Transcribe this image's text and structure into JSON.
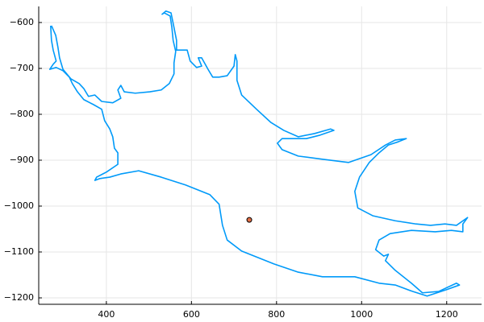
{
  "chart_data": {
    "type": "line",
    "xlim": [
      241,
      1282
    ],
    "ylim": [
      -1214,
      -565
    ],
    "xticks": [
      400,
      600,
      800,
      1000,
      1200
    ],
    "yticks": [
      {
        "value": -600,
        "label": "−600"
      },
      {
        "value": -700,
        "label": "−700"
      },
      {
        "value": -800,
        "label": "−800"
      },
      {
        "value": -900,
        "label": "−900"
      },
      {
        "value": -1000,
        "label": "−1000"
      },
      {
        "value": -1100,
        "label": "−1100"
      },
      {
        "value": -1200,
        "label": "−1200"
      }
    ],
    "grid": true,
    "series": [
      {
        "type": "line",
        "color": "#009af9",
        "x": [
          271,
          281,
          286,
          290,
          298,
          317,
          336,
          347,
          358,
          373,
          389,
          415,
          434,
          427,
          434,
          442,
          468,
          502,
          529,
          548,
          559,
          559,
          563,
          557,
          554,
          550,
          536,
          531,
          540,
          552,
          559,
          565,
          565,
          590,
          597,
          612,
          624,
          616,
          624,
          639,
          650,
          665,
          684,
          700,
          703,
          707,
          707,
          718,
          753,
          787,
          817,
          851,
          889,
          927,
          935,
          900,
          870,
          813,
          802,
          813,
          851,
          908,
          969,
          1022,
          1056,
          1079,
          1105,
          1086,
          1063,
          1041,
          1018,
          995,
          984,
          991,
          1026,
          1079,
          1128,
          1162,
          1196,
          1223,
          1249,
          1238,
          1238,
          1211,
          1173,
          1117,
          1067,
          1041,
          1033,
          1052,
          1063,
          1056,
          1079,
          1117,
          1143,
          1181,
          1223,
          1230,
          1200,
          1154,
          1120,
          1079,
          1041,
          984,
          908,
          851,
          794,
          718,
          684,
          673,
          665,
          643,
          586,
          529,
          476,
          434,
          408,
          385,
          373,
          377,
          400,
          427,
          427,
          419,
          415,
          408,
          396,
          389,
          370,
          347,
          332,
          320,
          313,
          298,
          282,
          267,
          275,
          282,
          275,
          271,
          269
        ],
        "y": [
          -607,
          -628,
          -653,
          -677,
          -702,
          -723,
          -733,
          -744,
          -761,
          -758,
          -772,
          -775,
          -765,
          -747,
          -737,
          -751,
          -754,
          -751,
          -747,
          -733,
          -712,
          -688,
          -663,
          -639,
          -611,
          -586,
          -579,
          -582,
          -575,
          -579,
          -611,
          -639,
          -660,
          -660,
          -684,
          -698,
          -695,
          -677,
          -677,
          -702,
          -719,
          -719,
          -716,
          -695,
          -670,
          -684,
          -726,
          -758,
          -789,
          -818,
          -835,
          -849,
          -842,
          -832,
          -835,
          -846,
          -853,
          -853,
          -863,
          -877,
          -891,
          -898,
          -905,
          -888,
          -867,
          -856,
          -853,
          -860,
          -867,
          -884,
          -905,
          -937,
          -968,
          -1004,
          -1021,
          -1032,
          -1039,
          -1042,
          -1039,
          -1042,
          -1025,
          -1039,
          -1056,
          -1053,
          -1056,
          -1053,
          -1060,
          -1074,
          -1095,
          -1109,
          -1105,
          -1119,
          -1140,
          -1168,
          -1189,
          -1186,
          -1168,
          -1172,
          -1182,
          -1196,
          -1186,
          -1172,
          -1168,
          -1154,
          -1154,
          -1144,
          -1126,
          -1098,
          -1074,
          -1042,
          -996,
          -975,
          -954,
          -937,
          -923,
          -930,
          -937,
          -940,
          -944,
          -937,
          -926,
          -909,
          -884,
          -874,
          -849,
          -832,
          -814,
          -789,
          -779,
          -768,
          -751,
          -733,
          -719,
          -705,
          -698,
          -702,
          -691,
          -684,
          -660,
          -639,
          -607
        ]
      },
      {
        "type": "scatter",
        "color": "#e26f46",
        "x": [
          736
        ],
        "y": [
          -1030
        ]
      }
    ]
  }
}
